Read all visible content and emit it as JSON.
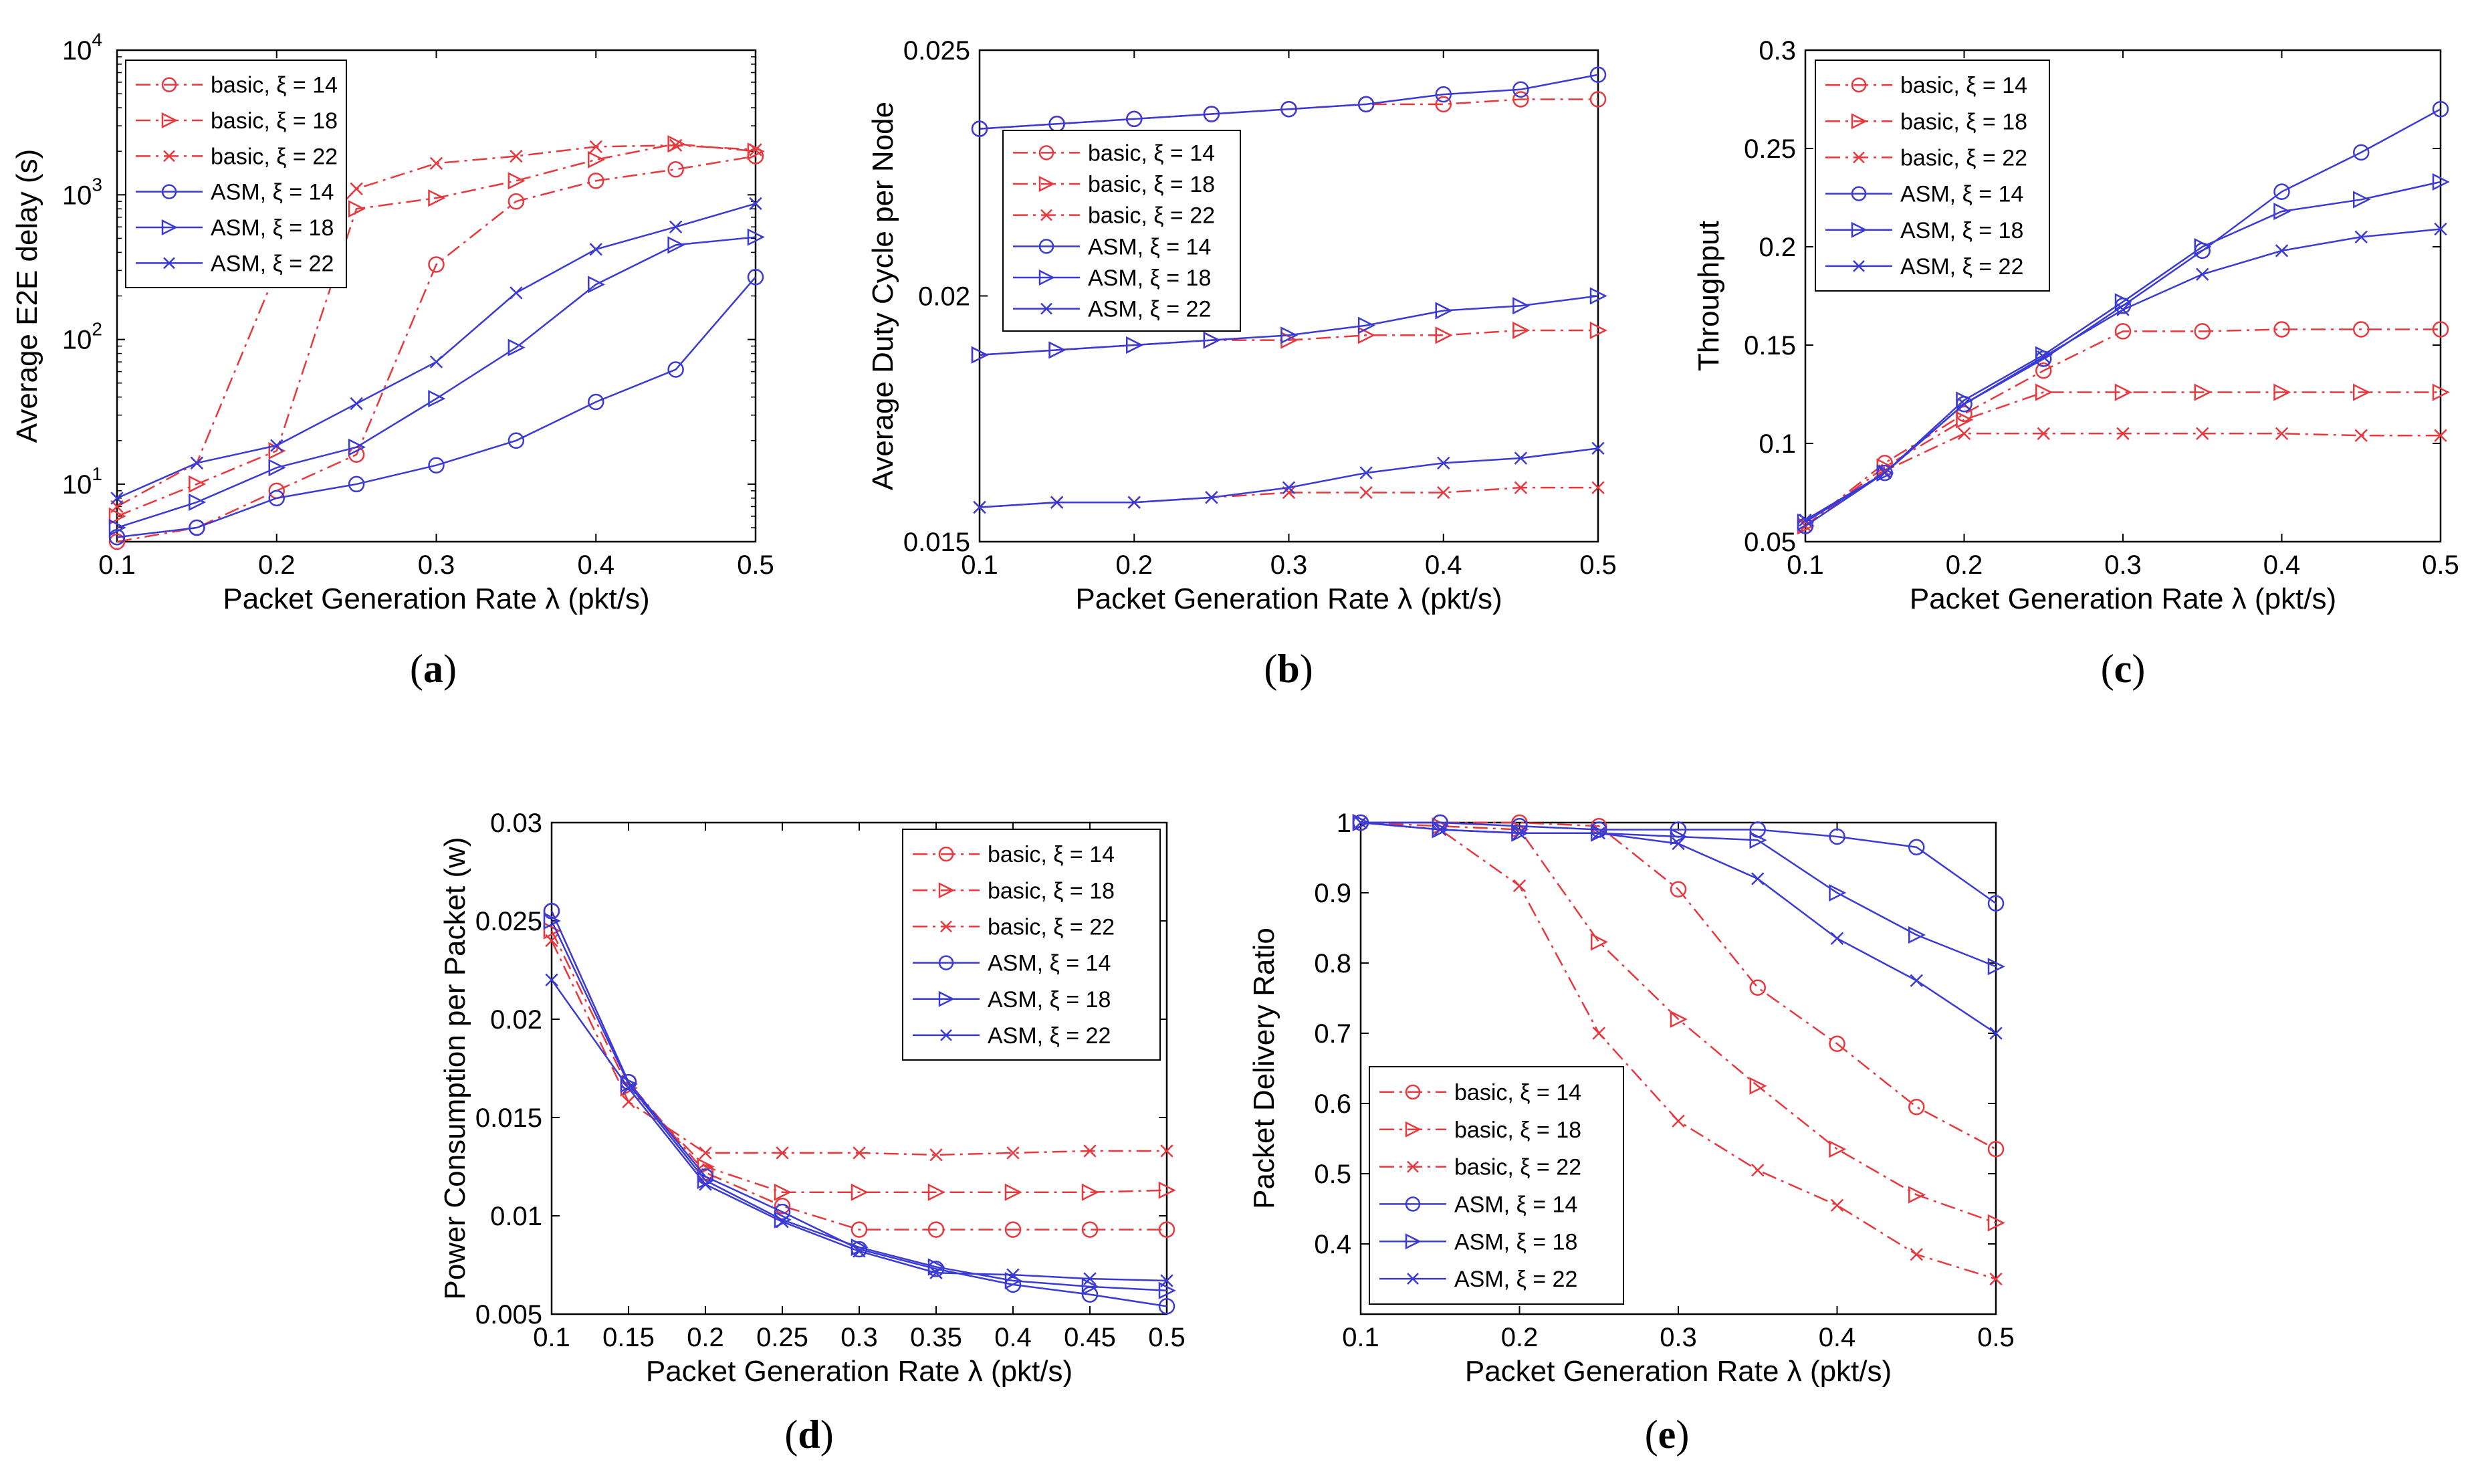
{
  "chart_data": [
    {
      "id": "a",
      "type": "line",
      "caption": "a",
      "xlabel": "Packet Generation Rate λ (pkt/s)",
      "ylabel": "Average E2E delay (s)",
      "yscale": "log",
      "xlim": [
        0.1,
        0.5
      ],
      "ylim": [
        4,
        10000
      ],
      "xticks": [
        "0.1",
        "0.2",
        "0.3",
        "0.4",
        "0.5"
      ],
      "yticks": [
        {
          "value": 10,
          "base": "10",
          "exp": "1"
        },
        {
          "value": 100,
          "base": "10",
          "exp": "2"
        },
        {
          "value": 1000,
          "base": "10",
          "exp": "3"
        },
        {
          "value": 10000,
          "base": "10",
          "exp": "4"
        }
      ],
      "legend_position": "top-left",
      "x": [
        0.1,
        0.15,
        0.2,
        0.25,
        0.3,
        0.35,
        0.4,
        0.45,
        0.5
      ],
      "series": [
        {
          "name": "basic, ξ = 14",
          "color": "#e8383d",
          "marker": "circle",
          "dash": "dashdot",
          "values": [
            4,
            5,
            9,
            16,
            330,
            900,
            1250,
            1500,
            1850
          ]
        },
        {
          "name": "basic, ξ = 18",
          "color": "#e8383d",
          "marker": "triangle",
          "dash": "dashdot",
          "values": [
            6,
            10,
            17,
            800,
            950,
            1250,
            1750,
            2250,
            2000
          ]
        },
        {
          "name": "basic, ξ = 22",
          "color": "#e8383d",
          "marker": "x",
          "dash": "dashdot",
          "values": [
            7,
            14,
            300,
            1100,
            1650,
            1850,
            2150,
            2200,
            2050
          ]
        },
        {
          "name": "ASM, ξ = 14",
          "color": "#3a3ad6",
          "marker": "circle",
          "dash": "solid",
          "values": [
            4.3,
            5,
            8,
            10,
            13.5,
            20,
            37,
            62,
            270
          ]
        },
        {
          "name": "ASM, ξ = 18",
          "color": "#3a3ad6",
          "marker": "triangle",
          "dash": "solid",
          "values": [
            5,
            7.5,
            13,
            18,
            39,
            88,
            240,
            450,
            510
          ]
        },
        {
          "name": "ASM, ξ = 22",
          "color": "#3a3ad6",
          "marker": "x",
          "dash": "solid",
          "values": [
            8,
            14,
            18.5,
            36,
            70,
            210,
            420,
            600,
            870
          ]
        }
      ]
    },
    {
      "id": "b",
      "type": "line",
      "caption": "b",
      "xlabel": "Packet Generation Rate λ (pkt/s)",
      "ylabel": "Average Duty Cycle per Node",
      "yscale": "linear",
      "xlim": [
        0.1,
        0.5
      ],
      "ylim": [
        0.015,
        0.025
      ],
      "xticks": [
        "0.1",
        "0.2",
        "0.3",
        "0.4",
        "0.5"
      ],
      "yticks": [
        "0.015",
        "0.02",
        "0.025"
      ],
      "legend_position": "left",
      "x": [
        0.1,
        0.15,
        0.2,
        0.25,
        0.3,
        0.35,
        0.4,
        0.45,
        0.5
      ],
      "series": [
        {
          "name": "basic, ξ = 14",
          "color": "#e8383d",
          "marker": "circle",
          "dash": "dashdot",
          "values": [
            0.0234,
            0.0235,
            0.0236,
            0.0237,
            0.0238,
            0.0239,
            0.0239,
            0.024,
            0.024
          ]
        },
        {
          "name": "basic, ξ = 18",
          "color": "#e8383d",
          "marker": "triangle",
          "dash": "dashdot",
          "values": [
            0.0188,
            0.0189,
            0.019,
            0.0191,
            0.0191,
            0.0192,
            0.0192,
            0.0193,
            0.0193
          ]
        },
        {
          "name": "basic, ξ = 22",
          "color": "#e8383d",
          "marker": "x",
          "dash": "dashdot",
          "values": [
            0.0157,
            0.0158,
            0.0158,
            0.0159,
            0.016,
            0.016,
            0.016,
            0.0161,
            0.0161
          ]
        },
        {
          "name": "ASM, ξ = 14",
          "color": "#3a3ad6",
          "marker": "circle",
          "dash": "solid",
          "values": [
            0.0234,
            0.0235,
            0.0236,
            0.0237,
            0.0238,
            0.0239,
            0.0241,
            0.0242,
            0.0245
          ]
        },
        {
          "name": "ASM, ξ = 18",
          "color": "#3a3ad6",
          "marker": "triangle",
          "dash": "solid",
          "values": [
            0.0188,
            0.0189,
            0.019,
            0.0191,
            0.0192,
            0.0194,
            0.0197,
            0.0198,
            0.02
          ]
        },
        {
          "name": "ASM, ξ = 22",
          "color": "#3a3ad6",
          "marker": "x",
          "dash": "solid",
          "values": [
            0.0157,
            0.0158,
            0.0158,
            0.0159,
            0.0161,
            0.0164,
            0.0166,
            0.0167,
            0.0169
          ]
        }
      ]
    },
    {
      "id": "c",
      "type": "line",
      "caption": "c",
      "xlabel": "Packet Generation Rate λ (pkt/s)",
      "ylabel": "Throughput",
      "yscale": "linear",
      "xlim": [
        0.1,
        0.5
      ],
      "ylim": [
        0.05,
        0.3
      ],
      "xticks": [
        "0.1",
        "0.2",
        "0.3",
        "0.4",
        "0.5"
      ],
      "yticks": [
        "0.05",
        "0.1",
        "0.15",
        "0.2",
        "0.25",
        "0.3"
      ],
      "legend_position": "top-left",
      "x": [
        0.1,
        0.15,
        0.2,
        0.25,
        0.3,
        0.35,
        0.4,
        0.45,
        0.5
      ],
      "series": [
        {
          "name": "basic, ξ = 14",
          "color": "#e8383d",
          "marker": "circle",
          "dash": "dashdot",
          "values": [
            0.058,
            0.09,
            0.115,
            0.137,
            0.157,
            0.157,
            0.158,
            0.158,
            0.158
          ]
        },
        {
          "name": "basic, ξ = 18",
          "color": "#e8383d",
          "marker": "triangle",
          "dash": "dashdot",
          "values": [
            0.058,
            0.088,
            0.112,
            0.126,
            0.126,
            0.126,
            0.126,
            0.126,
            0.126
          ]
        },
        {
          "name": "basic, ξ = 22",
          "color": "#e8383d",
          "marker": "x",
          "dash": "dashdot",
          "values": [
            0.058,
            0.086,
            0.105,
            0.105,
            0.105,
            0.105,
            0.105,
            0.104,
            0.104
          ]
        },
        {
          "name": "ASM, ξ = 14",
          "color": "#3a3ad6",
          "marker": "circle",
          "dash": "solid",
          "values": [
            0.058,
            0.085,
            0.12,
            0.143,
            0.17,
            0.198,
            0.228,
            0.248,
            0.27
          ]
        },
        {
          "name": "ASM, ξ = 18",
          "color": "#3a3ad6",
          "marker": "triangle",
          "dash": "solid",
          "values": [
            0.06,
            0.085,
            0.122,
            0.145,
            0.172,
            0.2,
            0.218,
            0.224,
            0.233
          ]
        },
        {
          "name": "ASM, ξ = 22",
          "color": "#3a3ad6",
          "marker": "x",
          "dash": "solid",
          "values": [
            0.061,
            0.085,
            0.12,
            0.144,
            0.168,
            0.186,
            0.198,
            0.205,
            0.209
          ]
        }
      ]
    },
    {
      "id": "d",
      "type": "line",
      "caption": "d",
      "xlabel": "Packet Generation Rate λ (pkt/s)",
      "ylabel": "Power Consumption per Packet (w)",
      "yscale": "linear",
      "xlim": [
        0.1,
        0.5
      ],
      "ylim": [
        0.005,
        0.03
      ],
      "xticks": [
        "0.1",
        "0.15",
        "0.2",
        "0.25",
        "0.3",
        "0.35",
        "0.4",
        "0.45",
        "0.5"
      ],
      "yticks": [
        "0.005",
        "0.01",
        "0.015",
        "0.02",
        "0.025",
        "0.03"
      ],
      "legend_position": "top-right",
      "x": [
        0.1,
        0.15,
        0.2,
        0.25,
        0.3,
        0.35,
        0.4,
        0.45,
        0.5
      ],
      "series": [
        {
          "name": "basic, ξ = 14",
          "color": "#e8383d",
          "marker": "circle",
          "dash": "dashdot",
          "values": [
            0.0255,
            0.0168,
            0.0122,
            0.0105,
            0.0093,
            0.0093,
            0.0093,
            0.0093,
            0.0093
          ]
        },
        {
          "name": "basic, ξ = 18",
          "color": "#e8383d",
          "marker": "triangle",
          "dash": "dashdot",
          "values": [
            0.0245,
            0.0165,
            0.0125,
            0.0112,
            0.0112,
            0.0112,
            0.0112,
            0.0112,
            0.0113
          ]
        },
        {
          "name": "basic, ξ = 22",
          "color": "#e8383d",
          "marker": "x",
          "dash": "dashdot",
          "values": [
            0.024,
            0.0158,
            0.0132,
            0.0132,
            0.0132,
            0.0131,
            0.0132,
            0.0133,
            0.0133
          ]
        },
        {
          "name": "ASM, ξ = 14",
          "color": "#3a3ad6",
          "marker": "circle",
          "dash": "solid",
          "values": [
            0.0255,
            0.0168,
            0.012,
            0.0102,
            0.0083,
            0.0073,
            0.0065,
            0.006,
            0.0054
          ]
        },
        {
          "name": "ASM, ξ = 18",
          "color": "#3a3ad6",
          "marker": "triangle",
          "dash": "solid",
          "values": [
            0.025,
            0.0167,
            0.0118,
            0.0098,
            0.0084,
            0.0074,
            0.0067,
            0.0064,
            0.0062
          ]
        },
        {
          "name": "ASM, ξ = 22",
          "color": "#3a3ad6",
          "marker": "x",
          "dash": "solid",
          "values": [
            0.022,
            0.0165,
            0.0116,
            0.0097,
            0.0082,
            0.0071,
            0.007,
            0.0068,
            0.0067
          ]
        }
      ]
    },
    {
      "id": "e",
      "type": "line",
      "caption": "e",
      "xlabel": "Packet Generation Rate λ (pkt/s)",
      "ylabel": "Packet Delivery Ratio",
      "yscale": "linear",
      "xlim": [
        0.1,
        0.5
      ],
      "ylim": [
        0.3,
        1.0
      ],
      "xticks": [
        "0.1",
        "0.2",
        "0.3",
        "0.4",
        "0.5"
      ],
      "yticks": [
        "0.4",
        "0.5",
        "0.6",
        "0.7",
        "0.8",
        "0.9",
        "1"
      ],
      "legend_position": "bottom-left",
      "x": [
        0.1,
        0.15,
        0.2,
        0.25,
        0.3,
        0.35,
        0.4,
        0.45,
        0.5
      ],
      "series": [
        {
          "name": "basic, ξ = 14",
          "color": "#e8383d",
          "marker": "circle",
          "dash": "dashdot",
          "values": [
            1.0,
            1.0,
            1.0,
            0.995,
            0.905,
            0.765,
            0.685,
            0.595,
            0.535
          ]
        },
        {
          "name": "basic, ξ = 18",
          "color": "#e8383d",
          "marker": "triangle",
          "dash": "dashdot",
          "values": [
            1.0,
            0.995,
            0.99,
            0.83,
            0.72,
            0.625,
            0.535,
            0.47,
            0.43
          ]
        },
        {
          "name": "basic, ξ = 22",
          "color": "#e8383d",
          "marker": "x",
          "dash": "dashdot",
          "values": [
            1.0,
            0.99,
            0.91,
            0.7,
            0.575,
            0.505,
            0.455,
            0.385,
            0.35
          ]
        },
        {
          "name": "ASM, ξ = 14",
          "color": "#3a3ad6",
          "marker": "circle",
          "dash": "solid",
          "values": [
            1.0,
            1.0,
            0.995,
            0.99,
            0.99,
            0.99,
            0.98,
            0.965,
            0.885
          ]
        },
        {
          "name": "ASM, ξ = 18",
          "color": "#3a3ad6",
          "marker": "triangle",
          "dash": "solid",
          "values": [
            1.0,
            0.99,
            0.985,
            0.985,
            0.98,
            0.975,
            0.9,
            0.84,
            0.795
          ]
        },
        {
          "name": "ASM, ξ = 22",
          "color": "#3a3ad6",
          "marker": "x",
          "dash": "solid",
          "values": [
            1.0,
            0.99,
            0.985,
            0.985,
            0.97,
            0.92,
            0.835,
            0.775,
            0.7
          ]
        }
      ]
    }
  ]
}
